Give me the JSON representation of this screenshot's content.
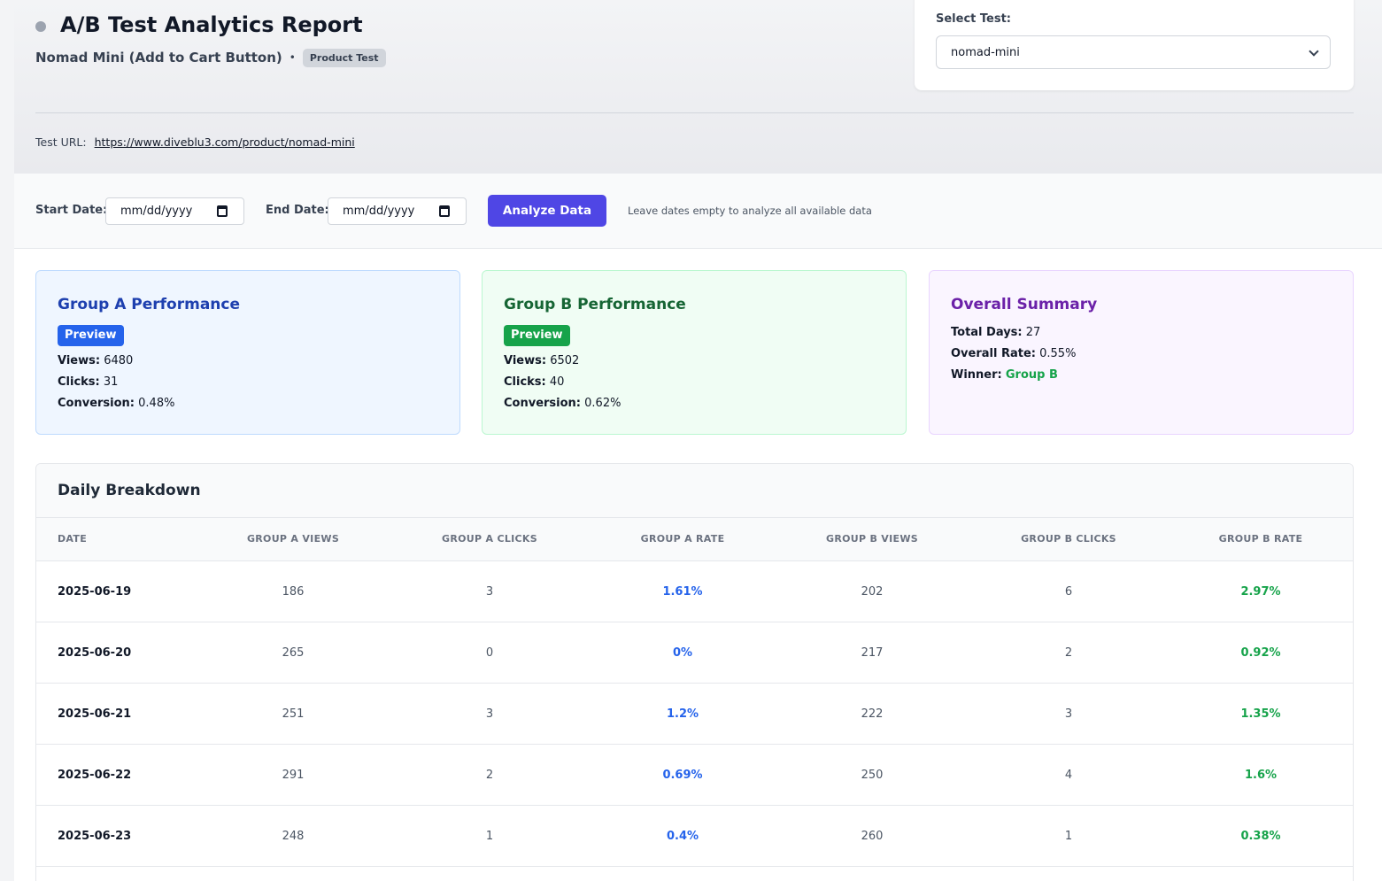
{
  "header": {
    "title": "A/B Test Analytics Report",
    "subtitle": "Nomad Mini (Add to Cart Button)",
    "separator": "•",
    "badge": "Product Test",
    "test_url_label": "Test URL:",
    "test_url": "https://www.diveblu3.com/product/nomad-mini"
  },
  "test_select": {
    "label": "Select Test:",
    "value": "nomad-mini"
  },
  "filters": {
    "start_label": "Start Date:",
    "start_placeholder": "mm/dd/yyyy",
    "end_label": "End Date:",
    "end_placeholder": "mm/dd/yyyy",
    "analyze_label": "Analyze Data",
    "hint": "Leave dates empty to analyze all available data"
  },
  "group_a": {
    "title": "Group A Performance",
    "preview_label": "Preview",
    "views_label": "Views:",
    "views": "6480",
    "clicks_label": "Clicks:",
    "clicks": "31",
    "conversion_label": "Conversion:",
    "conversion": "0.48%"
  },
  "group_b": {
    "title": "Group B Performance",
    "preview_label": "Preview",
    "views_label": "Views:",
    "views": "6502",
    "clicks_label": "Clicks:",
    "clicks": "40",
    "conversion_label": "Conversion:",
    "conversion": "0.62%"
  },
  "summary": {
    "title": "Overall Summary",
    "total_days_label": "Total Days:",
    "total_days": "27",
    "overall_rate_label": "Overall Rate:",
    "overall_rate": "0.55%",
    "winner_label": "Winner:",
    "winner": "Group B"
  },
  "daily": {
    "title": "Daily Breakdown",
    "columns": [
      "DATE",
      "GROUP A VIEWS",
      "GROUP A CLICKS",
      "GROUP A RATE",
      "GROUP B VIEWS",
      "GROUP B CLICKS",
      "GROUP B RATE"
    ],
    "rows": [
      [
        "2025-06-19",
        "186",
        "3",
        "1.61%",
        "202",
        "6",
        "2.97%"
      ],
      [
        "2025-06-20",
        "265",
        "0",
        "0%",
        "217",
        "2",
        "0.92%"
      ],
      [
        "2025-06-21",
        "251",
        "3",
        "1.2%",
        "222",
        "3",
        "1.35%"
      ],
      [
        "2025-06-22",
        "291",
        "2",
        "0.69%",
        "250",
        "4",
        "1.6%"
      ],
      [
        "2025-06-23",
        "248",
        "1",
        "0.4%",
        "260",
        "1",
        "0.38%"
      ]
    ]
  },
  "colors": {
    "accent": "#4f46e5",
    "group_a": "#2563eb",
    "group_b": "#16a34a",
    "summary": "#6b21a8"
  }
}
